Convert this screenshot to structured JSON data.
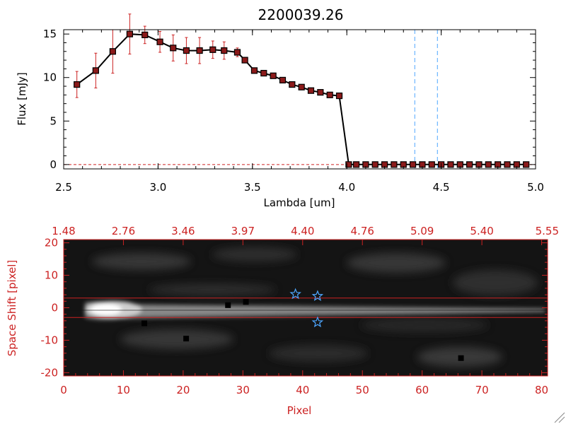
{
  "chart_data": [
    {
      "type": "line",
      "title": "2200039.26",
      "xlabel": "Lambda [um]",
      "ylabel": "Flux [mJy]",
      "xlim": [
        2.5,
        5.0
      ],
      "ylim": [
        -0.5,
        15.5
      ],
      "x_ticks": [
        "2.5",
        "3.0",
        "3.5",
        "4.0",
        "4.5",
        "5.0"
      ],
      "y_ticks": [
        "0",
        "5",
        "10",
        "15"
      ],
      "grid": false,
      "colors": {
        "line": "#000000",
        "marker": "#8b1a1a",
        "errorbar": "#cc2222",
        "vline": "#4da6ff",
        "zero_line": "#cc2222"
      },
      "vlines": [
        4.36,
        4.48
      ],
      "series": [
        {
          "x": [
            2.57,
            2.67,
            2.76,
            2.85,
            2.93,
            3.01,
            3.08,
            3.15,
            3.22,
            3.29,
            3.35,
            3.42,
            3.46,
            3.51,
            3.56,
            3.61,
            3.66,
            3.71,
            3.76,
            3.81,
            3.86,
            3.91,
            3.96,
            4.01,
            4.05,
            4.1,
            4.15,
            4.2,
            4.25,
            4.3,
            4.35,
            4.4,
            4.45,
            4.5,
            4.55,
            4.6,
            4.65,
            4.7,
            4.75,
            4.8,
            4.85,
            4.9,
            4.95
          ],
          "y": [
            9.2,
            10.8,
            13.0,
            15.0,
            14.9,
            14.1,
            13.4,
            13.1,
            13.1,
            13.2,
            13.1,
            12.9,
            12.0,
            10.8,
            10.5,
            10.2,
            9.7,
            9.2,
            8.9,
            8.5,
            8.3,
            8.0,
            7.9,
            0,
            0,
            0,
            0,
            0,
            0,
            0,
            0,
            0,
            0,
            0,
            0,
            0,
            0,
            0,
            0,
            0,
            0,
            0,
            0
          ],
          "yerr": [
            1.5,
            2.0,
            2.5,
            2.3,
            1.0,
            1.2,
            1.5,
            1.5,
            1.5,
            1.0,
            1.0,
            0.5,
            0.3,
            0.3,
            0.3,
            0.3,
            0.3,
            0.3,
            0.3,
            0.3,
            0.3,
            0.3,
            0.3,
            0.1,
            0.1,
            0.1,
            0.1,
            0.1,
            0.1,
            0.1,
            0.1,
            0.1,
            0.1,
            0.1,
            0.1,
            0.1,
            0.1,
            0.1,
            0.1,
            0.1,
            0.1,
            0.1,
            0.1
          ]
        }
      ]
    },
    {
      "type": "heatmap",
      "xlabel": "Pixel",
      "ylabel": "Space Shift [pixel]",
      "xlim": [
        0,
        81
      ],
      "ylim": [
        -21,
        21
      ],
      "x_ticks": [
        "0",
        "10",
        "20",
        "30",
        "40",
        "50",
        "60",
        "70",
        "80"
      ],
      "y_ticks": [
        "-20",
        "-10",
        "0",
        "10",
        "20"
      ],
      "top_ticks": [
        "1.48",
        "2.76",
        "3.46",
        "3.97",
        "4.40",
        "4.76",
        "5.09",
        "5.40",
        "5.55"
      ],
      "colors": {
        "axes": "#cc2222",
        "marker": "#4da6ff",
        "aperture": "#cc2222"
      },
      "aperture_lines": [
        3,
        -3
      ],
      "star_markers": [
        {
          "x": 38.8,
          "y": 4.2
        },
        {
          "x": 42.5,
          "y": 3.6
        },
        {
          "x": 42.5,
          "y": -4.5
        }
      ],
      "dark_pixels": [
        {
          "x": 27.5,
          "y": 0.8
        },
        {
          "x": 30.5,
          "y": 1.8
        },
        {
          "x": 13.5,
          "y": -4.8
        },
        {
          "x": 20.5,
          "y": -9.5
        },
        {
          "x": 66.5,
          "y": -15.5
        }
      ]
    }
  ]
}
